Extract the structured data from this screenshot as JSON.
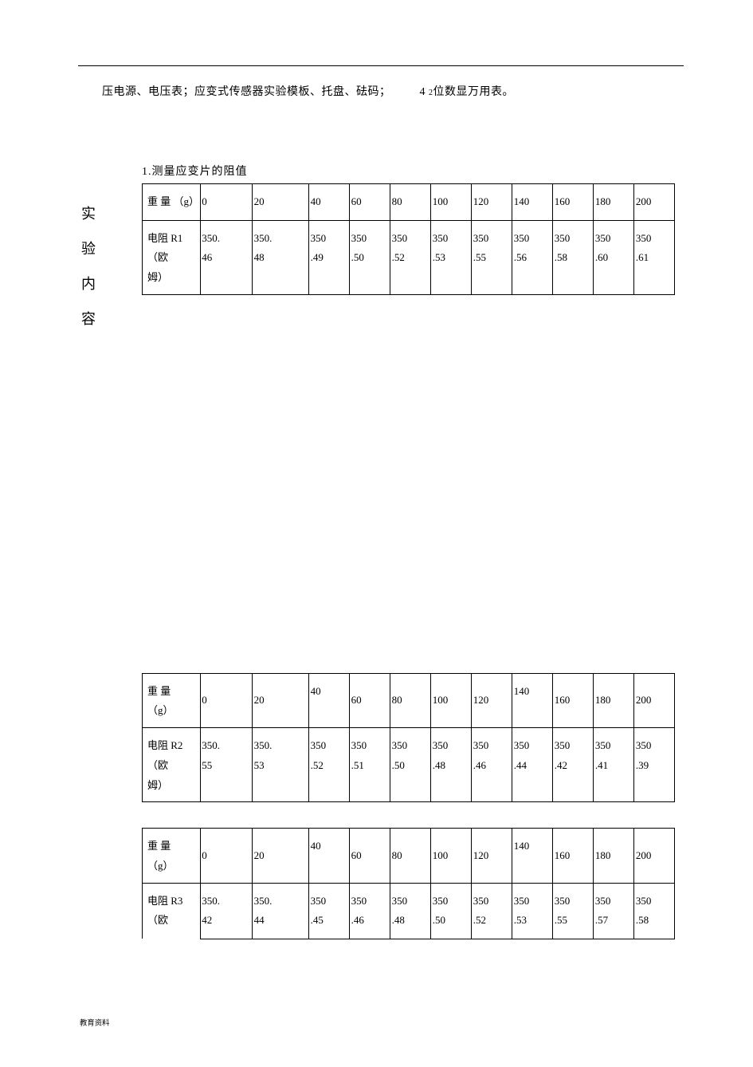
{
  "text": {
    "top_line_prefix": "压电源、电压表；应变式传感器实验模板、托盘、砝码；",
    "top_line_digits_big": "4",
    "top_line_digits_small": "2",
    "top_line_suffix": "位数显万用表。",
    "section_title": "1.测量应变片的阻值",
    "side_label_chars": [
      "实",
      "验",
      "内",
      "容"
    ],
    "footer": "教育资料"
  },
  "tables": {
    "t1": {
      "row1_label": "重 量\n（g）",
      "row1_values": [
        "0",
        "20",
        "40",
        "60",
        "80",
        "100",
        "120",
        "140",
        "160",
        "180",
        "200"
      ],
      "row2_label": "电阻 R1\n（欧\n姆）",
      "row2_values": [
        "350.\n46",
        "350.\n48",
        "350\n.49",
        "350\n.50",
        "350\n.52",
        "350\n.53",
        "350\n.55",
        "350\n.56",
        "350\n.58",
        "350\n.60",
        "350\n.61"
      ]
    },
    "t2": {
      "row1_label": "重 量\n（g）",
      "row1_values": [
        "0",
        "20",
        "40",
        "60",
        "80",
        "100",
        "120",
        "140",
        "160",
        "180",
        "200"
      ],
      "row2_label": "电阻 R2\n（欧\n姆）",
      "row2_values": [
        "350.\n55",
        "350.\n53",
        "350\n.52",
        "350\n.51",
        "350\n.50",
        "350\n.48",
        "350\n.46",
        "350\n.44",
        "350\n.42",
        "350\n.41",
        "350\n.39"
      ]
    },
    "t3": {
      "row1_label": "重 量\n（g）",
      "row1_values": [
        "0",
        "20",
        "40",
        "60",
        "80",
        "100",
        "120",
        "140",
        "160",
        "180",
        "200"
      ],
      "row2_label": "电阻 R3\n（欧",
      "row2_values": [
        "350.\n42",
        "350.\n44",
        "350\n.45",
        "350\n.46",
        "350\n.48",
        "350\n.50",
        "350\n.52",
        "350\n.53",
        "350\n.55",
        "350\n.57",
        "350\n.58"
      ]
    }
  },
  "style": {
    "page_bg": "#ffffff",
    "border_color": "#000000",
    "text_color": "#000000",
    "font_family": "SimSun",
    "body_fontsize": 14,
    "table_fontsize": 13,
    "footer_fontsize": 11,
    "side_label_fontsize": 18
  }
}
